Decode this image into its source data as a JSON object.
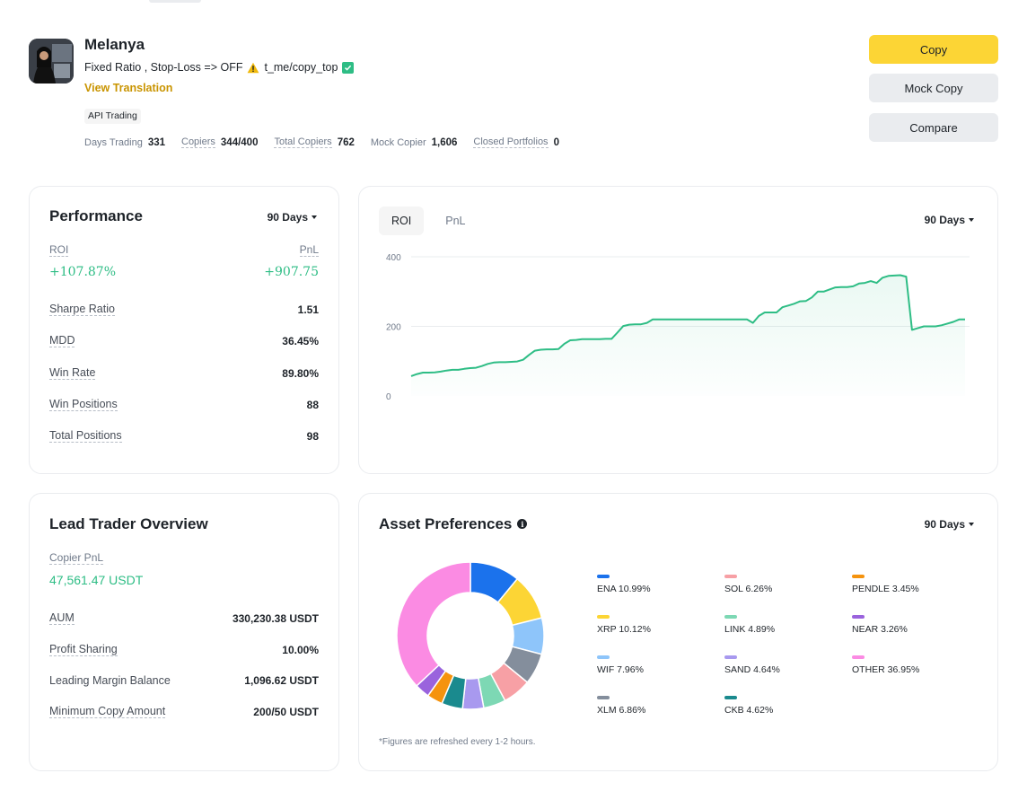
{
  "trader": {
    "name": "Melanya",
    "bio": "Fixed Ratio , Stop-Loss => OFF",
    "bio_link": "t_me/copy_top",
    "view_translation": "View Translation",
    "tag": "API Trading",
    "stats": [
      {
        "label": "Days Trading",
        "value": "331"
      },
      {
        "label": "Copiers",
        "value": "344/400"
      },
      {
        "label": "Total Copiers",
        "value": "762"
      },
      {
        "label": "Mock Copier",
        "value": "1,606"
      },
      {
        "label": "Closed Portfolios",
        "value": "0"
      }
    ]
  },
  "actions": {
    "copy": "Copy",
    "mock_copy": "Mock Copy",
    "compare": "Compare"
  },
  "performance": {
    "title": "Performance",
    "period": "90 Days",
    "roi_label": "ROI",
    "pnl_label": "PnL",
    "roi_value": "+107.87%",
    "pnl_value": "+907.75",
    "metrics": [
      {
        "label": "Sharpe Ratio",
        "value": "1.51"
      },
      {
        "label": "MDD",
        "value": "36.45%"
      },
      {
        "label": "Win Rate",
        "value": "89.80%"
      },
      {
        "label": "Win Positions",
        "value": "88"
      },
      {
        "label": "Total Positions",
        "value": "98"
      }
    ]
  },
  "roi_chart": {
    "tabs": [
      "ROI",
      "PnL"
    ],
    "period": "90 Days"
  },
  "overview": {
    "title": "Lead Trader Overview",
    "copier_pnl_label": "Copier PnL",
    "copier_pnl_value": "47,561.47 USDT",
    "metrics": [
      {
        "label": "AUM",
        "value": "330,230.38 USDT"
      },
      {
        "label": "Profit Sharing",
        "value": "10.00%"
      },
      {
        "label": "Leading Margin Balance",
        "value": "1,096.62 USDT"
      },
      {
        "label": "Minimum Copy Amount",
        "value": "200/50 USDT"
      }
    ]
  },
  "assets": {
    "title": "Asset Preferences",
    "period": "90 Days",
    "footnote": "*Figures are refreshed every 1-2 hours."
  },
  "chart_data": [
    {
      "type": "line",
      "title": "ROI",
      "xlabel": "",
      "ylabel": "",
      "ylim": [
        0,
        400
      ],
      "yticks": [
        "0",
        "200",
        "400"
      ],
      "grid": true,
      "values": [
        57,
        63,
        67,
        67,
        68,
        70,
        73,
        75,
        75,
        78,
        80,
        81,
        86,
        92,
        96,
        97,
        97,
        98,
        99,
        104,
        118,
        130,
        133,
        134,
        134,
        135,
        150,
        160,
        161,
        163,
        163,
        163,
        163,
        164,
        164,
        182,
        201,
        205,
        206,
        206,
        210,
        220,
        220,
        220,
        220,
        220,
        220,
        220,
        220,
        220,
        220,
        220,
        220,
        220,
        220,
        220,
        220,
        220,
        210,
        230,
        240,
        240,
        240,
        255,
        260,
        265,
        272,
        273,
        283,
        300,
        300,
        306,
        312,
        313,
        313,
        315,
        323,
        325,
        330,
        325,
        340,
        345,
        346,
        347,
        343,
        190,
        195,
        200,
        200,
        200,
        203,
        208,
        213,
        220,
        220
      ]
    },
    {
      "type": "pie",
      "title": "Asset Preferences",
      "categories": [
        "ENA",
        "XRP",
        "WIF",
        "XLM",
        "SOL",
        "LINK",
        "SAND",
        "CKB",
        "PENDLE",
        "NEAR",
        "OTHER"
      ],
      "values": [
        10.99,
        10.12,
        7.96,
        6.86,
        6.26,
        4.89,
        4.64,
        4.62,
        3.45,
        3.26,
        36.95
      ],
      "labels": [
        "ENA 10.99%",
        "XRP 10.12%",
        "WIF 7.96%",
        "XLM 6.86%",
        "SOL 6.26%",
        "LINK 4.89%",
        "SAND 4.64%",
        "CKB 4.62%",
        "PENDLE 3.45%",
        "NEAR 3.26%",
        "OTHER 36.95%"
      ],
      "colors": [
        "#1b72ec",
        "#fcd535",
        "#8ec5fa",
        "#848e9c",
        "#f7a0a5",
        "#7dd8b4",
        "#a899ef",
        "#1a8a8e",
        "#f5930e",
        "#9a63dd",
        "#fb8be3"
      ]
    }
  ]
}
